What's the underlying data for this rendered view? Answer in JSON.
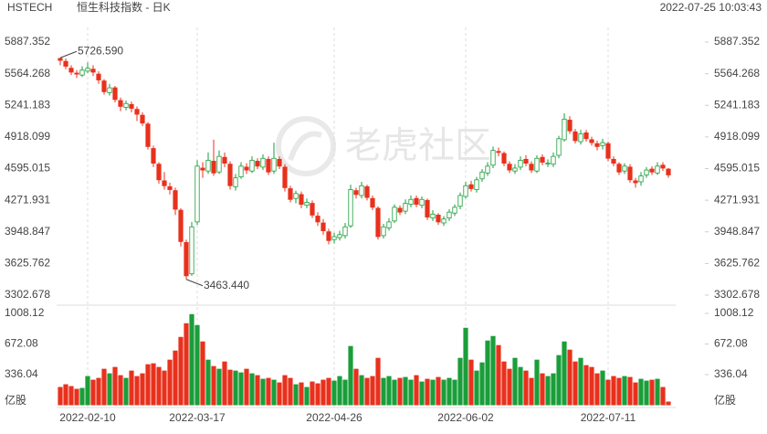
{
  "header": {
    "symbol": "HSTECH",
    "name": "恒生科技指数 - 日K",
    "timestamp": "2022-07-25 10:03:43"
  },
  "watermark": "老虎社区",
  "chart_data": [
    {
      "type": "candlestick",
      "up_color": "#1a9e3a",
      "down_color": "#e8311d",
      "categories": [
        null,
        null,
        null,
        null,
        null,
        "2022-02-10",
        null,
        null,
        null,
        null,
        null,
        null,
        null,
        null,
        null,
        null,
        null,
        null,
        null,
        null,
        null,
        null,
        null,
        null,
        null,
        "2022-03-17",
        null,
        null,
        null,
        null,
        null,
        null,
        null,
        null,
        null,
        null,
        null,
        null,
        null,
        null,
        null,
        null,
        null,
        null,
        null,
        null,
        null,
        null,
        null,
        null,
        "2022-04-26",
        null,
        null,
        null,
        null,
        null,
        null,
        null,
        null,
        null,
        null,
        null,
        null,
        null,
        null,
        null,
        null,
        null,
        null,
        null,
        null,
        null,
        null,
        null,
        "2022-06-02",
        null,
        null,
        null,
        null,
        null,
        null,
        null,
        null,
        null,
        null,
        null,
        null,
        null,
        null,
        null,
        null,
        null,
        null,
        null,
        null,
        null,
        null,
        null,
        null,
        null,
        "2022-07-11",
        null,
        null,
        null,
        null,
        null,
        null,
        null,
        null,
        null,
        null,
        null
      ],
      "open": {
        "values": [
          5720,
          5690,
          5620,
          5570,
          5550,
          5590,
          5610,
          5560,
          5490,
          5370,
          5420,
          5290,
          5220,
          5250,
          5200,
          5140,
          5050,
          4800,
          4640,
          4470,
          4410,
          4370,
          4170,
          3840,
          3520,
          4050,
          4600,
          4570,
          4670,
          4560,
          4710,
          4640,
          4410,
          4510,
          4610,
          4570,
          4670,
          4610,
          4690,
          4570,
          4690,
          4610,
          4390,
          4290,
          4330,
          4220,
          4240,
          4110,
          4040,
          3950,
          3870,
          3890,
          3910,
          4010,
          4370,
          4320,
          4410,
          4290,
          4190,
          3910,
          3990,
          4060,
          4190,
          4160,
          4230,
          4290,
          4220,
          4270,
          4090,
          4120,
          4040,
          4090,
          4140,
          4210,
          4310,
          4430,
          4380,
          4490,
          4550,
          4630,
          4770,
          4750,
          4640,
          4570,
          4610,
          4690,
          4640,
          4570,
          4710,
          4650,
          4640,
          4730,
          4890,
          5090,
          4970,
          4870,
          4960,
          4890,
          4850,
          4830,
          4850,
          4690,
          4640,
          4570,
          4610,
          4470,
          4460,
          4530,
          4590,
          4550,
          4630,
          4590
        ]
      },
      "high": {
        "values": [
          5726.59,
          5720,
          5650,
          5600,
          5640,
          5680,
          5650,
          5590,
          5510,
          5460,
          5440,
          5320,
          5290,
          5280,
          5230,
          5170,
          5070,
          4830,
          4660,
          4560,
          4450,
          4400,
          4190,
          3870,
          4050,
          4680,
          4660,
          4760,
          4890,
          4780,
          4760,
          4670,
          4540,
          4660,
          4650,
          4720,
          4700,
          4740,
          4720,
          4860,
          4720,
          4640,
          4420,
          4370,
          4360,
          4290,
          4270,
          4150,
          4080,
          3980,
          3940,
          3960,
          4040,
          4430,
          4400,
          4460,
          4430,
          4320,
          4210,
          4030,
          4090,
          4230,
          4220,
          4280,
          4320,
          4320,
          4310,
          4290,
          4170,
          4140,
          4110,
          4180,
          4230,
          4350,
          4460,
          4470,
          4510,
          4590,
          4660,
          4820,
          4810,
          4770,
          4670,
          4640,
          4720,
          4730,
          4670,
          4730,
          4740,
          4690,
          4760,
          4930,
          5160,
          5130,
          5000,
          4990,
          4990,
          4920,
          4880,
          4900,
          4870,
          4720,
          4660,
          4650,
          4640,
          4500,
          4560,
          4610,
          4620,
          4660,
          4660,
          4600
        ],
        "value_labels": [
          "5726.590",
          null,
          null,
          null,
          null,
          null,
          null,
          null,
          null,
          null,
          null,
          null,
          null,
          null,
          null,
          null,
          null,
          null,
          null,
          null,
          null,
          null,
          null,
          null,
          null,
          null,
          null,
          null,
          null,
          null,
          null,
          null,
          null,
          null,
          null,
          null,
          null,
          null,
          null,
          null,
          null,
          null,
          null,
          null,
          null,
          null,
          null,
          null,
          null,
          null,
          null,
          null,
          null,
          null,
          null,
          null,
          null,
          null,
          null,
          null,
          null,
          null,
          null,
          null,
          null,
          null,
          null,
          null,
          null,
          null,
          null,
          null,
          null,
          null,
          null,
          null,
          null,
          null,
          null,
          null,
          null,
          null,
          null,
          null,
          null,
          null,
          null,
          null,
          null,
          null,
          null,
          null,
          null,
          null,
          null,
          null,
          null,
          null,
          null,
          null,
          null,
          null,
          null,
          null,
          null,
          null,
          null,
          null,
          null,
          null,
          null,
          null
        ]
      },
      "low": {
        "values": [
          5650,
          5610,
          5550,
          5520,
          5530,
          5570,
          5540,
          5460,
          5350,
          5340,
          5270,
          5180,
          5190,
          5170,
          5080,
          5030,
          4790,
          4610,
          4440,
          4380,
          4330,
          4120,
          3800,
          3463.44,
          3500,
          4020,
          4500,
          4540,
          4520,
          4540,
          4610,
          4380,
          4370,
          4490,
          4540,
          4550,
          4590,
          4580,
          4530,
          4540,
          4590,
          4360,
          4250,
          4240,
          4190,
          4190,
          4090,
          4010,
          3920,
          3820,
          3830,
          3860,
          3880,
          3990,
          4290,
          4290,
          4270,
          4170,
          3870,
          3880,
          3960,
          4040,
          4120,
          4130,
          4200,
          4200,
          4190,
          4070,
          4060,
          4020,
          4010,
          4060,
          4110,
          4180,
          4290,
          4360,
          4350,
          4460,
          4520,
          4600,
          4720,
          4620,
          4550,
          4540,
          4580,
          4620,
          4550,
          4550,
          4630,
          4610,
          4610,
          4700,
          4870,
          4950,
          4850,
          4840,
          4870,
          4830,
          4780,
          4790,
          4670,
          4620,
          4530,
          4540,
          4450,
          4400,
          4420,
          4500,
          4530,
          4530,
          4570,
          4500
        ],
        "value_labels": [
          null,
          null,
          null,
          null,
          null,
          null,
          null,
          null,
          null,
          null,
          null,
          null,
          null,
          null,
          null,
          null,
          null,
          null,
          null,
          null,
          null,
          null,
          null,
          "3463.440",
          null,
          null,
          null,
          null,
          null,
          null,
          null,
          null,
          null,
          null,
          null,
          null,
          null,
          null,
          null,
          null,
          null,
          null,
          null,
          null,
          null,
          null,
          null,
          null,
          null,
          null,
          null,
          null,
          null,
          null,
          null,
          null,
          null,
          null,
          null,
          null,
          null,
          null,
          null,
          null,
          null,
          null,
          null,
          null,
          null,
          null,
          null,
          null,
          null,
          null,
          null,
          null,
          null,
          null,
          null,
          null,
          null,
          null,
          null,
          null,
          null,
          null,
          null,
          null,
          null,
          null,
          null,
          null,
          null,
          null,
          null,
          null,
          null,
          null,
          null,
          null,
          null,
          null,
          null,
          null,
          null,
          null,
          null,
          null,
          null,
          null,
          null,
          null
        ]
      },
      "close": {
        "values": [
          5700,
          5640,
          5580,
          5560,
          5600,
          5620,
          5580,
          5500,
          5380,
          5420,
          5300,
          5230,
          5260,
          5210,
          5150,
          5060,
          4820,
          4650,
          4480,
          4420,
          4380,
          4180,
          3850,
          3500,
          4000,
          4620,
          4580,
          4680,
          4550,
          4720,
          4650,
          4420,
          4500,
          4620,
          4580,
          4680,
          4620,
          4700,
          4560,
          4700,
          4620,
          4400,
          4280,
          4340,
          4230,
          4250,
          4120,
          4050,
          3960,
          3860,
          3900,
          3920,
          4000,
          4380,
          4330,
          4420,
          4300,
          4200,
          3900,
          4000,
          4050,
          4200,
          4150,
          4240,
          4280,
          4230,
          4280,
          4100,
          4130,
          4050,
          4080,
          4150,
          4200,
          4320,
          4420,
          4390,
          4480,
          4560,
          4620,
          4780,
          4760,
          4650,
          4580,
          4600,
          4680,
          4650,
          4580,
          4700,
          4660,
          4650,
          4720,
          4900,
          5100,
          4980,
          4880,
          4950,
          4900,
          4860,
          4820,
          4860,
          4700,
          4650,
          4560,
          4620,
          4480,
          4450,
          4520,
          4580,
          4560,
          4620,
          4600,
          4530
        ]
      },
      "ylim": [
        3302.678,
        5887.352
      ],
      "yticks": [
        5887.352,
        5564.268,
        5241.183,
        4918.099,
        4595.015,
        4271.931,
        3948.847,
        3625.762,
        3302.678
      ]
    },
    {
      "type": "bar",
      "unit_label": "亿股",
      "values": [
        200,
        230,
        210,
        180,
        190,
        320,
        280,
        300,
        400,
        350,
        420,
        330,
        300,
        380,
        320,
        350,
        450,
        460,
        420,
        380,
        500,
        600,
        750,
        900,
        1000,
        880,
        700,
        500,
        430,
        400,
        480,
        390,
        380,
        360,
        400,
        350,
        330,
        290,
        300,
        280,
        250,
        330,
        300,
        230,
        250,
        200,
        260,
        240,
        280,
        300,
        270,
        320,
        280,
        650,
        400,
        330,
        300,
        320,
        520,
        300,
        320,
        280,
        300,
        310,
        280,
        330,
        260,
        290,
        280,
        310,
        280,
        300,
        280,
        520,
        850,
        500,
        380,
        470,
        710,
        760,
        660,
        480,
        400,
        520,
        420,
        380,
        300,
        500,
        350,
        320,
        350,
        550,
        700,
        610,
        480,
        520,
        440,
        420,
        350,
        380,
        280,
        320,
        300,
        320,
        310,
        250,
        290,
        270,
        280,
        290,
        200,
        40
      ],
      "ylim": [
        0,
        1008.12
      ],
      "yticks": [
        1008.12,
        672.08,
        336.04
      ]
    }
  ]
}
